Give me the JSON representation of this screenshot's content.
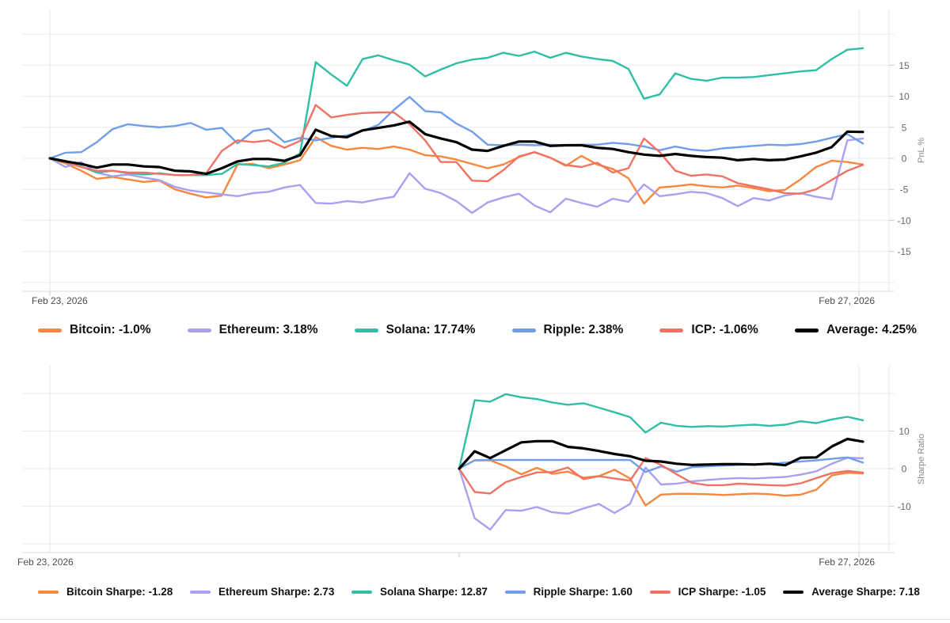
{
  "chart_data": [
    {
      "type": "line",
      "title": "",
      "ylabel": "PnL %",
      "x_start_label": "Feb 23, 2026",
      "x_end_label": "Feb 27, 2026",
      "y_ticks": [
        15,
        10,
        5,
        0,
        -5,
        -10,
        -15
      ],
      "y_gridlines": [
        20,
        15,
        10,
        5,
        0,
        -5,
        -10,
        -15,
        -20
      ],
      "ylim": [
        -23,
        23
      ],
      "grid": true,
      "legend_position": "bottom",
      "legend": [
        "Bitcoin: -1.0%",
        "Ethereum: 3.18%",
        "Solana: 17.74%",
        "Ripple: 2.38%",
        "ICP: -1.06%",
        "Average: 4.25%"
      ],
      "series": [
        {
          "name": "Bitcoin",
          "color": "#f6873e",
          "final_value": -1.0,
          "values": [
            0,
            -0.8,
            -2.0,
            -3.3,
            -3.0,
            -3.4,
            -3.8,
            -3.6,
            -5.0,
            -5.7,
            -6.3,
            -6.0,
            -1.0,
            -0.9,
            -1.6,
            -1.0,
            -0.3,
            3.4,
            2.0,
            1.4,
            1.7,
            1.5,
            1.9,
            1.4,
            0.5,
            0.3,
            -0.2,
            -0.9,
            -1.6,
            -1.0,
            0.2,
            1.0,
            0.1,
            -1.2,
            0.4,
            -1.0,
            -1.7,
            -3.2,
            -7.3,
            -4.7,
            -4.5,
            -4.2,
            -4.5,
            -4.7,
            -4.4,
            -4.8,
            -5.3,
            -5.1,
            -3.4,
            -1.4,
            -0.4,
            -0.6,
            -1.0
          ]
        },
        {
          "name": "Ethereum",
          "color": "#a9a0f2",
          "final_value": 3.18,
          "values": [
            0,
            -1.4,
            -0.6,
            -2.3,
            -2.9,
            -2.6,
            -3.1,
            -3.5,
            -4.6,
            -5.2,
            -5.5,
            -5.8,
            -6.1,
            -5.6,
            -5.4,
            -4.7,
            -4.3,
            -7.2,
            -7.3,
            -6.9,
            -7.1,
            -6.6,
            -6.2,
            -2.4,
            -4.9,
            -5.6,
            -6.9,
            -8.8,
            -7.1,
            -6.3,
            -5.7,
            -7.6,
            -8.7,
            -6.5,
            -7.2,
            -7.8,
            -6.5,
            -7.0,
            -4.2,
            -6.1,
            -5.8,
            -5.4,
            -5.6,
            -6.4,
            -7.7,
            -6.4,
            -6.8,
            -6.0,
            -5.6,
            -6.2,
            -6.6,
            2.9,
            3.18
          ]
        },
        {
          "name": "Solana",
          "color": "#2fbfa5",
          "final_value": 17.74,
          "values": [
            0,
            -0.4,
            -1.3,
            -2.3,
            -2.0,
            -2.4,
            -2.6,
            -2.4,
            -2.7,
            -2.7,
            -2.7,
            -2.5,
            -0.9,
            -1.1,
            -1.3,
            -0.7,
            0.8,
            15.5,
            13.5,
            11.7,
            16.0,
            16.6,
            15.8,
            15.1,
            13.2,
            14.3,
            15.3,
            15.9,
            16.2,
            17.0,
            16.5,
            17.2,
            16.2,
            17.0,
            16.4,
            16.0,
            15.7,
            14.4,
            9.6,
            10.3,
            13.7,
            12.8,
            12.5,
            13.0,
            13.0,
            13.1,
            13.4,
            13.7,
            14.0,
            14.2,
            16.0,
            17.5,
            17.74
          ]
        },
        {
          "name": "Ripple",
          "color": "#6f9fea",
          "final_value": 2.38,
          "values": [
            0,
            0.9,
            1.0,
            2.6,
            4.7,
            5.5,
            5.2,
            5.0,
            5.2,
            5.7,
            4.6,
            4.9,
            2.4,
            4.4,
            4.8,
            2.6,
            3.3,
            2.9,
            3.3,
            3.7,
            4.4,
            5.4,
            7.8,
            9.9,
            7.6,
            7.4,
            5.6,
            4.3,
            2.2,
            2.1,
            2.2,
            2.1,
            2.2,
            2.1,
            2.2,
            2.2,
            2.5,
            2.3,
            1.9,
            1.3,
            1.9,
            1.4,
            1.2,
            1.6,
            1.8,
            2.0,
            2.2,
            2.1,
            2.3,
            2.7,
            3.3,
            3.9,
            2.38
          ]
        },
        {
          "name": "ICP",
          "color": "#ef7265",
          "final_value": -1.06,
          "values": [
            0,
            -0.6,
            -1.4,
            -2.0,
            -2.0,
            -2.3,
            -2.3,
            -2.5,
            -2.7,
            -2.7,
            -2.4,
            1.2,
            2.9,
            2.6,
            2.9,
            1.7,
            2.8,
            8.6,
            6.6,
            7.0,
            7.3,
            7.4,
            7.4,
            5.5,
            2.9,
            -0.6,
            -0.6,
            -3.6,
            -3.7,
            -1.9,
            0.3,
            1.0,
            0.1,
            -1.1,
            -1.4,
            -0.7,
            -2.3,
            -1.6,
            3.2,
            1.0,
            -2.0,
            -2.8,
            -2.6,
            -2.9,
            -4.0,
            -4.5,
            -5.0,
            -5.6,
            -5.7,
            -5.0,
            -3.5,
            -2.0,
            -1.06
          ]
        },
        {
          "name": "Average",
          "color": "#000000",
          "final_value": 4.25,
          "emphasis": true,
          "values": [
            0,
            -0.5,
            -0.9,
            -1.5,
            -1.0,
            -1.0,
            -1.3,
            -1.4,
            -2.0,
            -2.1,
            -2.5,
            -1.6,
            -0.5,
            -0.1,
            -0.1,
            -0.4,
            0.5,
            4.6,
            3.6,
            3.4,
            4.5,
            4.9,
            5.3,
            5.9,
            3.9,
            3.2,
            2.6,
            1.4,
            1.2,
            2.0,
            2.7,
            2.7,
            2.0,
            2.1,
            2.1,
            1.7,
            1.5,
            1.0,
            0.6,
            0.4,
            0.7,
            0.4,
            0.2,
            0.1,
            -0.3,
            -0.1,
            -0.3,
            -0.2,
            0.3,
            0.9,
            1.8,
            4.3,
            4.25
          ]
        }
      ]
    },
    {
      "type": "line",
      "title": "",
      "ylabel": "Sharpe Ratio",
      "x_start_label": "Feb 23, 2026",
      "x_end_label": "Feb 27, 2026",
      "y_ticks": [
        10,
        0,
        -10
      ],
      "y_gridlines": [
        20,
        10,
        0,
        -10,
        -20
      ],
      "ylim": [
        -25,
        25
      ],
      "grid": true,
      "legend_position": "bottom",
      "note": "series data begins midway through the date range",
      "legend": [
        "Bitcoin Sharpe: -1.28",
        "Ethereum Sharpe: 2.73",
        "Solana Sharpe: 12.87",
        "Ripple Sharpe: 1.60",
        "ICP Sharpe: -1.05",
        "Average Sharpe: 7.18"
      ],
      "series": [
        {
          "name": "Bitcoin Sharpe",
          "color": "#f6873e",
          "final_value": -1.28,
          "values": [
            0,
            2.2,
            2.2,
            0.6,
            -1.5,
            0.2,
            -1.4,
            -0.8,
            -2.4,
            -2.0,
            -0.3,
            -2.6,
            -9.8,
            -6.9,
            -6.7,
            -6.7,
            -6.8,
            -7.0,
            -6.8,
            -6.6,
            -6.8,
            -7.2,
            -6.9,
            -5.6,
            -1.8,
            -1.1,
            -1.28
          ]
        },
        {
          "name": "Ethereum Sharpe",
          "color": "#a9a0f2",
          "final_value": 2.73,
          "values": [
            0,
            -13.2,
            -16.2,
            -11.0,
            -11.2,
            -10.2,
            -11.6,
            -12.0,
            -10.6,
            -9.4,
            -11.8,
            -9.4,
            0.3,
            -4.2,
            -4.0,
            -3.4,
            -3.0,
            -2.7,
            -2.5,
            -2.6,
            -2.4,
            -2.2,
            -1.6,
            -0.7,
            1.3,
            2.9,
            2.73
          ]
        },
        {
          "name": "Solana Sharpe",
          "color": "#2fbfa5",
          "final_value": 12.87,
          "values": [
            0,
            18.2,
            17.8,
            19.8,
            19.0,
            18.5,
            17.6,
            17.0,
            17.4,
            16.2,
            15.0,
            13.7,
            9.6,
            12.2,
            11.4,
            11.1,
            11.3,
            11.2,
            11.5,
            11.7,
            11.4,
            11.7,
            12.6,
            12.1,
            13.1,
            13.8,
            12.87
          ]
        },
        {
          "name": "Ripple Sharpe",
          "color": "#6f9fea",
          "final_value": 1.6,
          "values": [
            0,
            2.2,
            2.3,
            2.3,
            2.3,
            2.3,
            2.3,
            2.3,
            2.3,
            2.3,
            2.3,
            2.3,
            -0.9,
            0.6,
            -0.8,
            0.4,
            0.6,
            0.8,
            1.0,
            1.1,
            1.3,
            1.6,
            1.9,
            2.2,
            2.6,
            3.0,
            1.6
          ]
        },
        {
          "name": "ICP Sharpe",
          "color": "#ef7265",
          "final_value": -1.05,
          "values": [
            0,
            -6.2,
            -6.6,
            -3.6,
            -2.2,
            -1.0,
            -0.9,
            0.3,
            -2.8,
            -2.0,
            -2.6,
            -3.2,
            2.8,
            1.0,
            -1.5,
            -3.8,
            -4.4,
            -4.4,
            -4.0,
            -4.2,
            -4.4,
            -4.5,
            -3.9,
            -2.5,
            -1.2,
            -0.6,
            -1.05
          ]
        },
        {
          "name": "Average Sharpe",
          "color": "#000000",
          "final_value": 7.18,
          "emphasis": true,
          "values": [
            0,
            4.6,
            2.8,
            4.9,
            7.0,
            7.3,
            7.3,
            5.8,
            5.4,
            4.7,
            3.9,
            3.3,
            2.1,
            1.9,
            1.3,
            1.0,
            1.1,
            1.2,
            1.2,
            1.1,
            1.3,
            0.9,
            2.9,
            3.0,
            5.9,
            7.9,
            7.18
          ]
        }
      ]
    }
  ]
}
